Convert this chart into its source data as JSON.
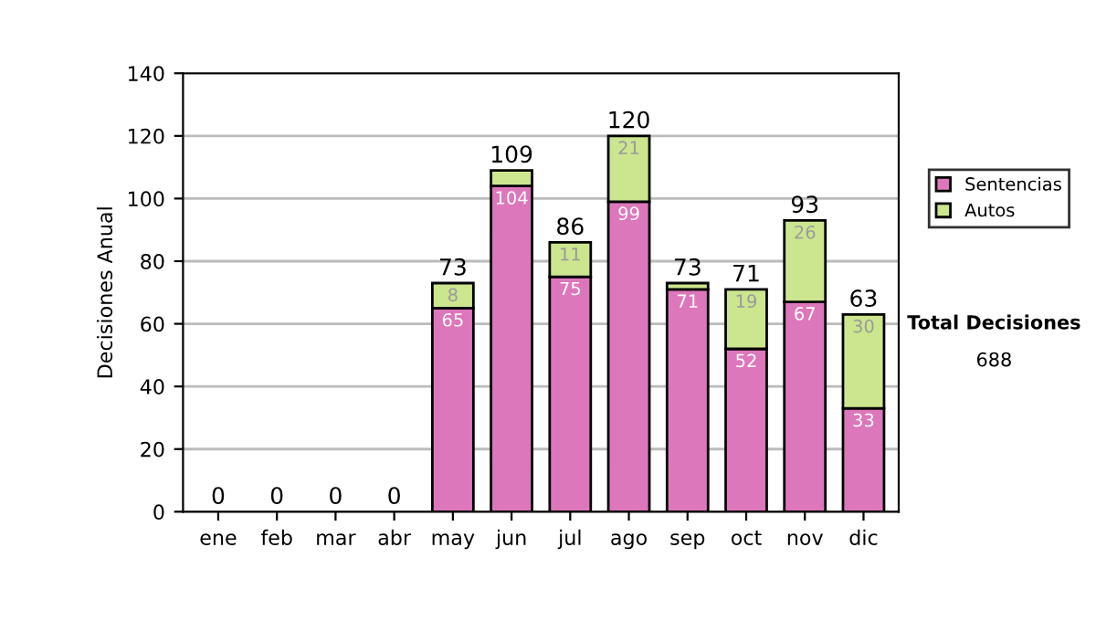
{
  "chart_data": {
    "type": "bar",
    "stacked": true,
    "ylabel": "Decisiones Anual",
    "categories": [
      "ene",
      "feb",
      "mar",
      "abr",
      "may",
      "jun",
      "jul",
      "ago",
      "sep",
      "oct",
      "nov",
      "dic"
    ],
    "series": [
      {
        "name": "Sentencias",
        "color": "#dd77bb",
        "values": [
          0,
          0,
          0,
          0,
          65,
          104,
          75,
          99,
          71,
          52,
          67,
          33
        ],
        "value_labels": [
          null,
          null,
          null,
          null,
          "65",
          "104",
          "75",
          "99",
          "71",
          "52",
          "67",
          "33"
        ]
      },
      {
        "name": "Autos",
        "color": "#cce68f",
        "values": [
          0,
          0,
          0,
          0,
          8,
          5,
          11,
          21,
          2,
          19,
          26,
          30
        ],
        "value_labels": [
          null,
          null,
          null,
          null,
          "8",
          null,
          "11",
          "21",
          null,
          "19",
          "26",
          "30"
        ]
      }
    ],
    "totals": [
      "0",
      "0",
      "0",
      "0",
      "73",
      "109",
      "86",
      "120",
      "73",
      "71",
      "93",
      "63"
    ],
    "ylim": [
      0,
      140
    ],
    "yticks": [
      0,
      20,
      40,
      60,
      80,
      100,
      120,
      140
    ],
    "grid": "y",
    "legend": "right",
    "annotations": [
      "Total Decisiones",
      "688"
    ]
  }
}
